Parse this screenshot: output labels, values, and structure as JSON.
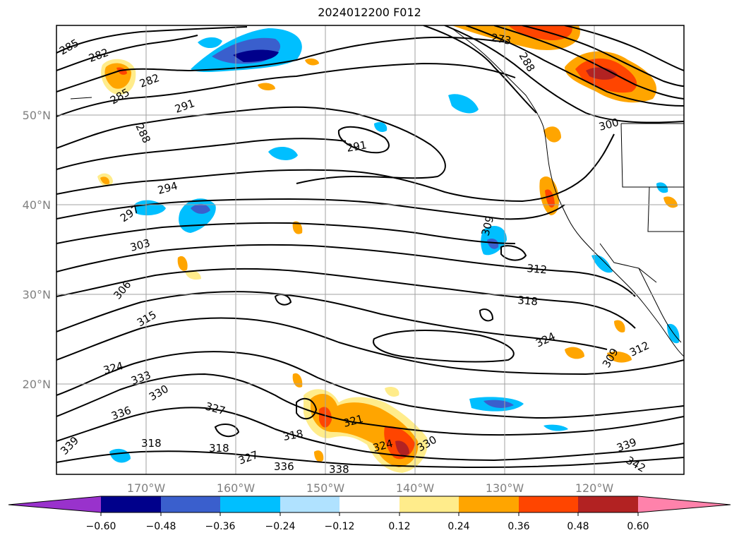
{
  "title": "2024012200 F012",
  "map": {
    "lon_range": [
      -180,
      -110
    ],
    "lat_range": [
      10,
      60
    ],
    "gridlines": true,
    "lat_ticks": [
      {
        "value": 50,
        "label": "50°N"
      },
      {
        "value": 40,
        "label": "40°N"
      },
      {
        "value": 30,
        "label": "30°N"
      },
      {
        "value": 20,
        "label": "20°N"
      }
    ],
    "lon_ticks": [
      {
        "value": -170,
        "label": "170°W"
      },
      {
        "value": -160,
        "label": "160°W"
      },
      {
        "value": -150,
        "label": "150°W"
      },
      {
        "value": -140,
        "label": "140°W"
      },
      {
        "value": -130,
        "label": "130°W"
      },
      {
        "value": -120,
        "label": "120°W"
      }
    ],
    "contour_labels": [
      "285",
      "282",
      "285",
      "282",
      "291",
      "288",
      "291",
      "294",
      "297",
      "303",
      "306",
      "315",
      "324",
      "333",
      "330",
      "336",
      "339",
      "318",
      "327",
      "318",
      "327",
      "336",
      "338",
      "324",
      "330",
      "321",
      "318",
      "309",
      "312",
      "318",
      "324",
      "309",
      "312",
      "300",
      "273",
      "288",
      "339",
      "342"
    ]
  },
  "colorbar": {
    "levels": [
      "−0.60",
      "−0.48",
      "−0.36",
      "−0.24",
      "−0.12",
      "0.12",
      "0.24",
      "0.36",
      "0.48",
      "0.60"
    ],
    "colors": [
      "#9932cc",
      "#00008b",
      "#3a5fcd",
      "#00bfff",
      "#b0e2ff",
      "#ffffff",
      "#ffec8b",
      "#ffa500",
      "#ff4500",
      "#b22222",
      "#ff82ab"
    ]
  }
}
